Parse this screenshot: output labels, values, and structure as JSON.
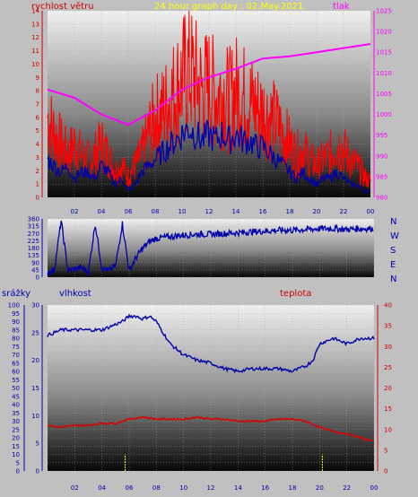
{
  "header": {
    "wind_label": "rychlost větru",
    "title": "24 hour graph day : 02.May.2021",
    "pressure_label": "tlak"
  },
  "lower_header": {
    "rain_label": "srážky",
    "humidity_label": "vlhkost",
    "temp_label": "teplota"
  },
  "compass_labels": [
    "N",
    "W",
    "S",
    "E",
    "N"
  ],
  "colors": {
    "wind": "#ff0000",
    "pressure": "#ff00ff",
    "wind_avg": "#0000aa",
    "direction": "#0000aa",
    "humidity": "#0000aa",
    "temperature": "#dd0000",
    "rain": "#ffff00",
    "wind_axis": "#cc0000",
    "pressure_axis": "#ff00ff",
    "rain_axis": "#0000aa",
    "temp_axis": "#cc0000",
    "title": "#ffff00"
  },
  "chart_data": [
    {
      "type": "line",
      "id": "wind_pressure",
      "x_ticks": [
        "02",
        "04",
        "06",
        "08",
        "10",
        "12",
        "14",
        "16",
        "18",
        "20",
        "22",
        "00"
      ],
      "ylim_left": [
        0,
        14
      ],
      "y_ticks_left": [
        0,
        1,
        2,
        3,
        4,
        5,
        6,
        7,
        8,
        9,
        10,
        11,
        12,
        13,
        14
      ],
      "ylim_right": [
        980,
        1025
      ],
      "y_ticks_right": [
        980,
        985,
        990,
        995,
        1000,
        1005,
        1010,
        1015,
        1020,
        1025
      ],
      "series": [
        {
          "name": "rychlost větru",
          "axis": "left",
          "style": "gust",
          "x": [
            0,
            0.5,
            1,
            1.5,
            2,
            2.5,
            3,
            3.5,
            4,
            4.5,
            5,
            5.5,
            6,
            6.5,
            7,
            7.5,
            8,
            8.5,
            9,
            9.5,
            10,
            10.5,
            11,
            11.5,
            12,
            12.5,
            13,
            13.5,
            14,
            14.5,
            15,
            15.5,
            16,
            16.5,
            17,
            17.5,
            18,
            18.5,
            19,
            19.5,
            20,
            20.5,
            21,
            21.5,
            22,
            22.5,
            23,
            23.5,
            24
          ],
          "values": [
            7.5,
            6,
            5,
            4,
            5,
            4,
            3.5,
            4,
            5,
            4,
            2.5,
            3,
            2,
            3,
            4,
            6,
            7.5,
            8,
            9,
            10,
            11,
            12,
            11,
            10,
            10.5,
            9.5,
            10,
            9,
            10,
            9.5,
            9,
            8.5,
            8,
            7.5,
            7,
            6,
            5,
            4,
            4.5,
            3.5,
            3,
            3.5,
            4,
            5,
            4.5,
            3.5,
            3,
            2,
            1.5
          ]
        },
        {
          "name": "",
          "axis": "left",
          "style": "avg",
          "x": [
            0,
            0.5,
            1,
            1.5,
            2,
            2.5,
            3,
            3.5,
            4,
            4.5,
            5,
            5.5,
            6,
            6.5,
            7,
            7.5,
            8,
            8.5,
            9,
            9.5,
            10,
            10.5,
            11,
            11.5,
            12,
            12.5,
            13,
            13.5,
            14,
            14.5,
            15,
            15.5,
            16,
            16.5,
            17,
            17.5,
            18,
            18.5,
            19,
            19.5,
            20,
            20.5,
            21,
            21.5,
            22,
            22.5,
            23,
            23.5,
            24
          ],
          "values": [
            3,
            2.5,
            2,
            2.5,
            1.5,
            2,
            2,
            1.5,
            2.5,
            2,
            1,
            1.5,
            0.5,
            1,
            2,
            2.5,
            3,
            3.5,
            4,
            4.5,
            5,
            5.5,
            5,
            4.5,
            5,
            4.5,
            5,
            4.5,
            5,
            4.5,
            4.5,
            4,
            4,
            3.5,
            3,
            2.5,
            2,
            1.5,
            2,
            1.5,
            1,
            1.5,
            1.5,
            2,
            1.5,
            1,
            1,
            0.5,
            0.5
          ]
        },
        {
          "name": "tlak",
          "axis": "right",
          "style": "pressure",
          "x": [
            0,
            2,
            4,
            6,
            8,
            10,
            12,
            14,
            16,
            18,
            20,
            22,
            24
          ],
          "values": [
            1006,
            1004,
            1000,
            997.5,
            1001,
            1006,
            1009,
            1011,
            1013.5,
            1014,
            1015,
            1016,
            1017
          ]
        }
      ]
    },
    {
      "type": "line",
      "id": "wind_direction",
      "x_ticks": [
        "02",
        "04",
        "06",
        "08",
        "10",
        "12",
        "14",
        "16",
        "18",
        "20",
        "22",
        "00"
      ],
      "ylim": [
        0,
        360
      ],
      "y_ticks": [
        0,
        45,
        90,
        135,
        180,
        225,
        270,
        315,
        360
      ],
      "y_tick_labels": [
        "0",
        "45",
        "90",
        "135",
        "180",
        "225",
        "270",
        "315",
        "360"
      ],
      "series": [
        {
          "name": "",
          "x": [
            0,
            0.5,
            1,
            1.5,
            2,
            2.5,
            3,
            3.5,
            4,
            4.5,
            5,
            5.5,
            6,
            6.5,
            7,
            7.5,
            8,
            9,
            10,
            11,
            12,
            13,
            14,
            15,
            16,
            17,
            18,
            19,
            20,
            21,
            22,
            23,
            24
          ],
          "values": [
            30,
            45,
            350,
            40,
            50,
            60,
            30,
            330,
            55,
            40,
            70,
            330,
            40,
            120,
            180,
            220,
            240,
            250,
            260,
            265,
            265,
            270,
            275,
            280,
            285,
            290,
            290,
            295,
            300,
            300,
            295,
            300,
            300
          ]
        }
      ]
    },
    {
      "type": "line",
      "id": "humidity_temp_rain",
      "x_ticks": [
        "02",
        "04",
        "06",
        "08",
        "10",
        "12",
        "14",
        "16",
        "18",
        "20",
        "22",
        "00"
      ],
      "ylim_rain": [
        0,
        100
      ],
      "y_ticks_rain": [
        0,
        5,
        10,
        15,
        20,
        25,
        30,
        35,
        40,
        45,
        50,
        55,
        60,
        65,
        70,
        75,
        80,
        85,
        90,
        95,
        100
      ],
      "ylim_humidity": [
        0,
        30
      ],
      "y_ticks_humidity": [
        0,
        5,
        10,
        15,
        20,
        25,
        30
      ],
      "ylim_temp": [
        0,
        40
      ],
      "y_ticks_temp": [
        0,
        5,
        10,
        15,
        20,
        25,
        30,
        35,
        40
      ],
      "series": [
        {
          "name": "vlhkost",
          "axis": "humidity",
          "x": [
            0,
            1,
            2,
            3,
            4,
            5,
            5.5,
            6,
            6.5,
            7,
            7.5,
            8,
            8.5,
            9,
            10,
            11,
            12,
            13,
            14,
            15,
            16,
            17,
            18,
            18.5,
            19,
            19.5,
            20,
            21,
            22,
            23,
            24
          ],
          "values": [
            24.5,
            25.5,
            25.5,
            25.5,
            25.5,
            26.5,
            27,
            28,
            28,
            27.5,
            28,
            27,
            25,
            23,
            21,
            20,
            19.5,
            18.5,
            18,
            18.5,
            18.5,
            18.5,
            18,
            18.5,
            19,
            20,
            23,
            24,
            23,
            24,
            24
          ]
        },
        {
          "name": "teplota",
          "axis": "temp",
          "x": [
            0,
            1,
            2,
            3,
            4,
            5,
            6,
            7,
            8,
            9,
            10,
            11,
            12,
            13,
            14,
            15,
            16,
            17,
            18,
            19,
            20,
            21,
            22,
            23,
            24
          ],
          "values": [
            11,
            10.5,
            11,
            11,
            11.5,
            11.5,
            12.5,
            13,
            12.5,
            12.5,
            12.5,
            13,
            12.5,
            12.5,
            12,
            12,
            12,
            12.5,
            12.5,
            12,
            10.5,
            9.5,
            9,
            8,
            7
          ]
        },
        {
          "name": "srážky",
          "axis": "rain",
          "style": "bars",
          "x": [
            5.7,
            20.2
          ],
          "values": [
            10,
            10
          ]
        }
      ]
    }
  ]
}
